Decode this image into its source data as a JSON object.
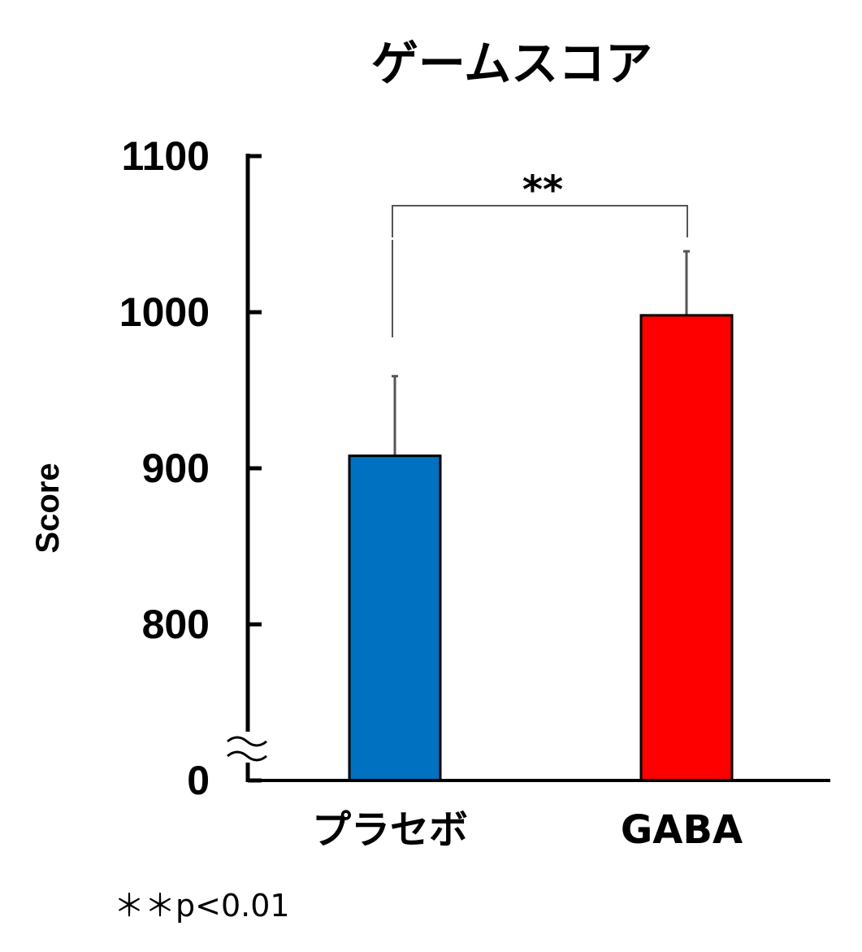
{
  "chart_data": {
    "type": "bar",
    "title": "ゲームスコア",
    "xlabel": "",
    "ylabel": "Score",
    "categories": [
      "プラセボ",
      "GABA"
    ],
    "values": [
      908,
      998
    ],
    "error_upper": [
      959,
      1039
    ],
    "colors": [
      "#0070C0",
      "#FF0000"
    ],
    "yticks": [
      "0",
      "800",
      "900",
      "1000",
      "1100"
    ],
    "ytick_values": [
      0,
      800,
      900,
      1000,
      1100
    ],
    "ylim": [
      0,
      1100
    ],
    "axis_break": "between 0 and 800",
    "grid": false,
    "significance": {
      "label": "**",
      "between": [
        "プラセボ",
        "GABA"
      ]
    },
    "footnote": "＊＊p<0.01"
  }
}
